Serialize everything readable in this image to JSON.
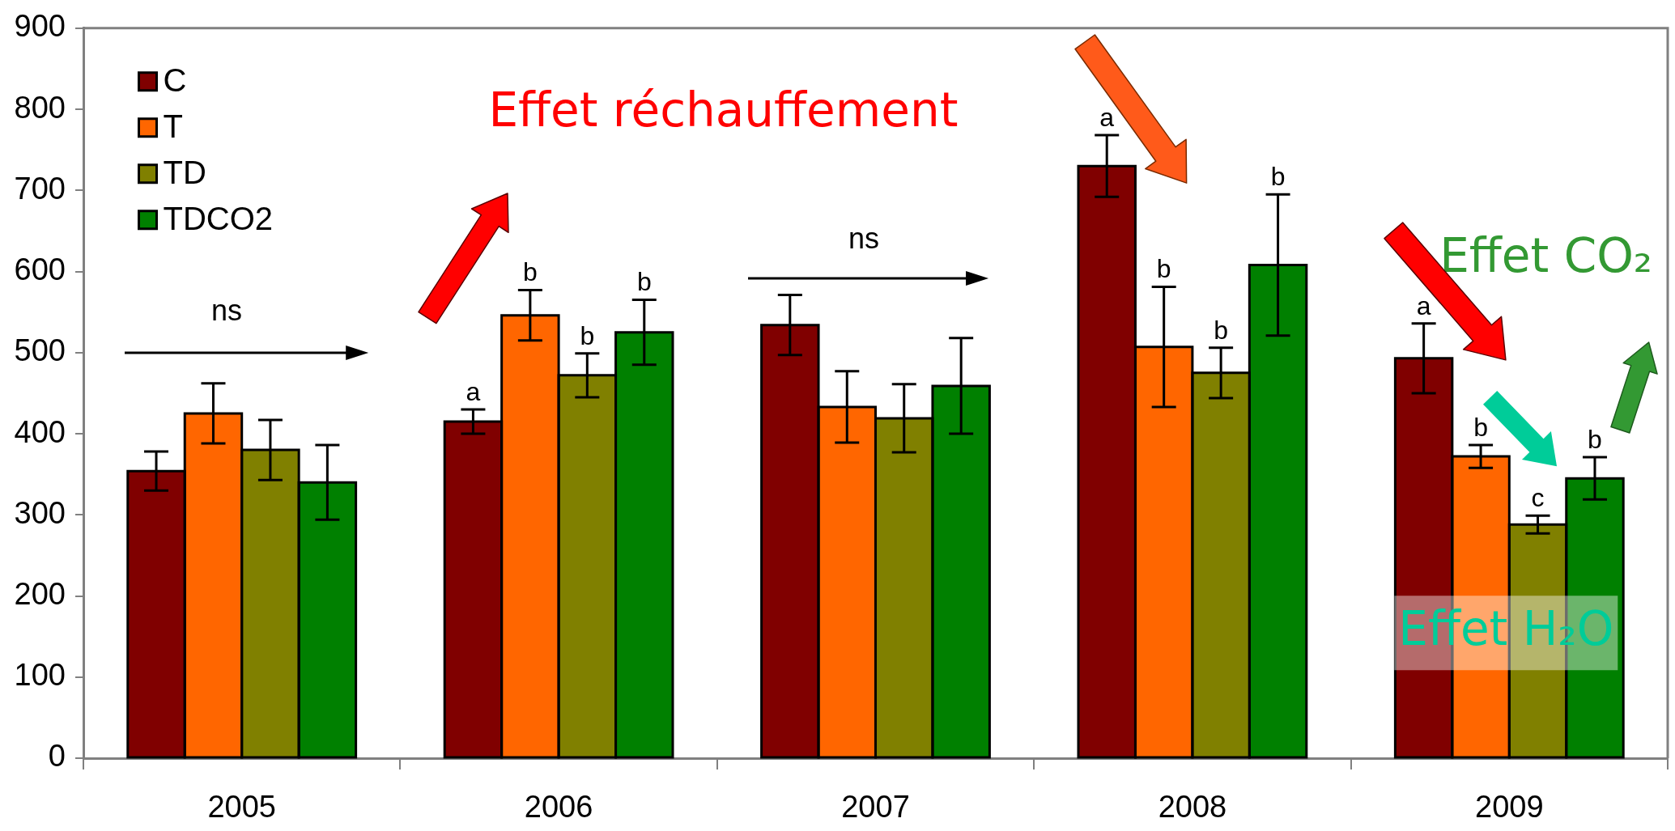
{
  "chart_data": {
    "type": "bar",
    "categories": [
      "2005",
      "2006",
      "2007",
      "2008",
      "2009"
    ],
    "series": [
      {
        "name": "C",
        "color": "#800000",
        "values": [
          354,
          415,
          534,
          730,
          493
        ],
        "errors": [
          24,
          15,
          37,
          38,
          43
        ],
        "value_labels": [
          null,
          "a",
          null,
          "a",
          "a"
        ]
      },
      {
        "name": "T",
        "color": "#ff6600",
        "values": [
          425,
          546,
          433,
          507,
          372
        ],
        "errors": [
          37,
          31,
          44,
          74,
          14
        ],
        "value_labels": [
          null,
          "b",
          null,
          "b",
          "b"
        ]
      },
      {
        "name": "TD",
        "color": "#808000",
        "values": [
          380,
          472,
          419,
          475,
          288
        ],
        "errors": [
          37,
          27,
          42,
          31,
          11
        ],
        "value_labels": [
          null,
          "b",
          null,
          "b",
          "c"
        ]
      },
      {
        "name": "TDCO2",
        "color": "#008000",
        "values": [
          340,
          525,
          459,
          608,
          345
        ],
        "errors": [
          46,
          40,
          59,
          87,
          26
        ],
        "value_labels": [
          null,
          "b",
          null,
          "b",
          "b"
        ]
      }
    ],
    "ylim": [
      0,
      900
    ],
    "yticks": [
      0,
      100,
      200,
      300,
      400,
      500,
      600,
      700,
      800,
      900
    ],
    "legend": "top left",
    "annotations": [
      "ns",
      "ns",
      "Effet réchauffement",
      "Effet CO₂",
      "Effet H₂O"
    ]
  }
}
